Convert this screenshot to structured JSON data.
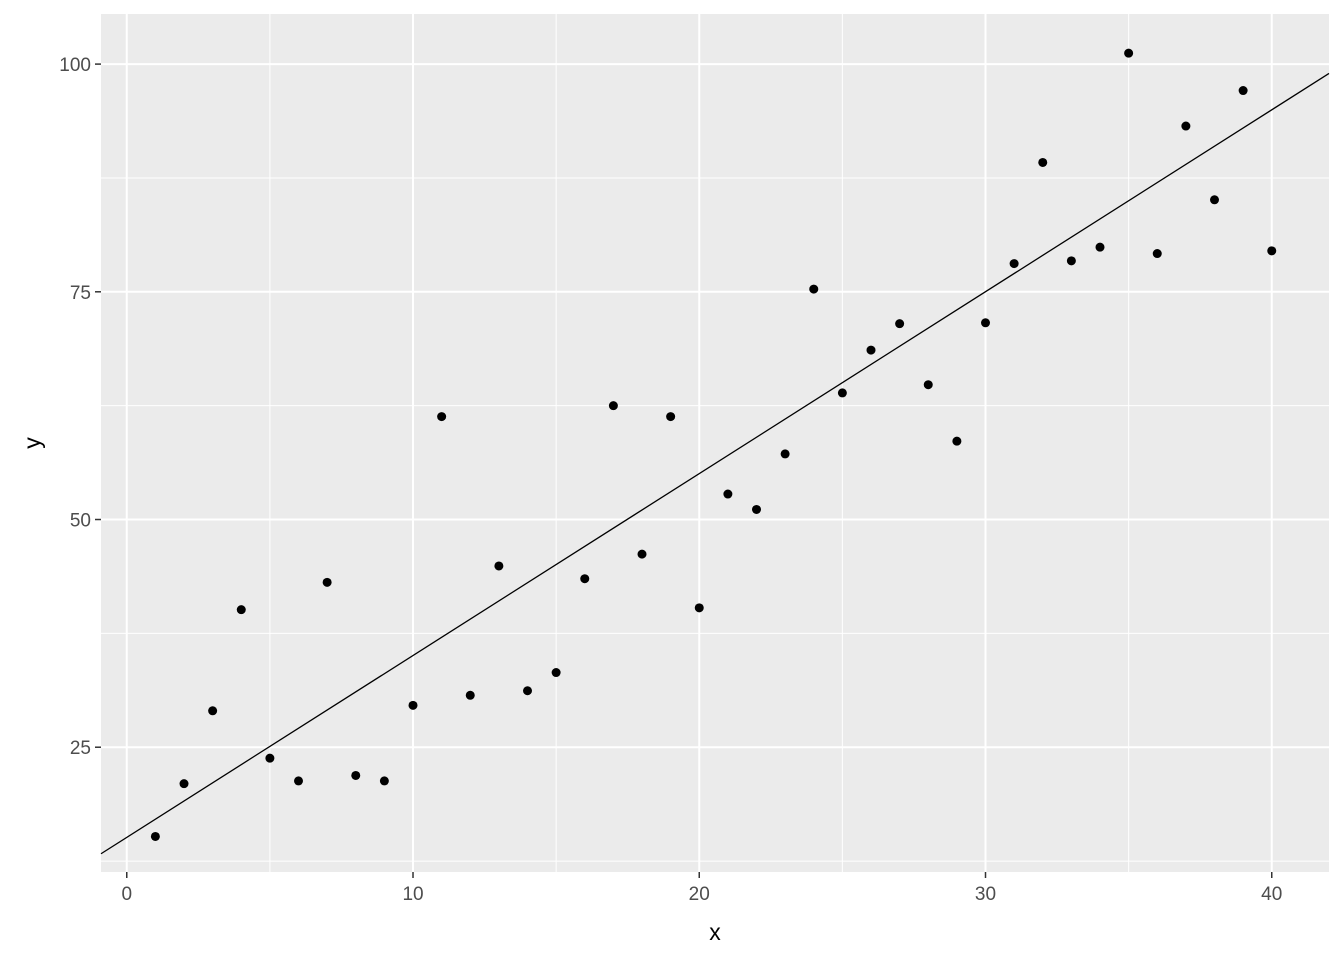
{
  "chart_data": {
    "type": "scatter",
    "title": "",
    "xlabel": "x",
    "ylabel": "y",
    "xlim": [
      -0.9,
      42
    ],
    "ylim": [
      11.3,
      105.5
    ],
    "x_ticks": [
      0,
      10,
      20,
      30,
      40
    ],
    "x_minor_ticks": [
      5,
      15,
      25,
      35
    ],
    "y_ticks": [
      25,
      50,
      75,
      100
    ],
    "y_minor_ticks": [
      12.5,
      37.5,
      62.5,
      87.5
    ],
    "x_tick_labels": [
      "0",
      "10",
      "20",
      "30",
      "40"
    ],
    "y_tick_labels": [
      "25",
      "50",
      "75",
      "100"
    ],
    "grid": true,
    "panel_background": "#ebebeb",
    "grid_color": "#ffffff",
    "point_color": "#000000",
    "points": [
      {
        "x": 1,
        "y": 15.2
      },
      {
        "x": 2,
        "y": 21.0
      },
      {
        "x": 3,
        "y": 29.0
      },
      {
        "x": 4,
        "y": 40.1
      },
      {
        "x": 5,
        "y": 23.8
      },
      {
        "x": 6,
        "y": 21.3
      },
      {
        "x": 7,
        "y": 43.1
      },
      {
        "x": 8,
        "y": 21.9
      },
      {
        "x": 9,
        "y": 21.3
      },
      {
        "x": 10,
        "y": 29.6
      },
      {
        "x": 11,
        "y": 61.3
      },
      {
        "x": 12,
        "y": 30.7
      },
      {
        "x": 13,
        "y": 44.9
      },
      {
        "x": 14,
        "y": 31.2
      },
      {
        "x": 15,
        "y": 33.2
      },
      {
        "x": 16,
        "y": 43.5
      },
      {
        "x": 17,
        "y": 62.5
      },
      {
        "x": 18,
        "y": 46.2
      },
      {
        "x": 19,
        "y": 61.3
      },
      {
        "x": 20,
        "y": 40.3
      },
      {
        "x": 21,
        "y": 52.8
      },
      {
        "x": 22,
        "y": 51.1
      },
      {
        "x": 23,
        "y": 57.2
      },
      {
        "x": 24,
        "y": 75.3
      },
      {
        "x": 25,
        "y": 63.9
      },
      {
        "x": 26,
        "y": 68.6
      },
      {
        "x": 27,
        "y": 71.5
      },
      {
        "x": 28,
        "y": 64.8
      },
      {
        "x": 29,
        "y": 58.6
      },
      {
        "x": 30,
        "y": 71.6
      },
      {
        "x": 31,
        "y": 78.1
      },
      {
        "x": 32,
        "y": 89.2
      },
      {
        "x": 33,
        "y": 78.4
      },
      {
        "x": 34,
        "y": 79.9
      },
      {
        "x": 35,
        "y": 101.2
      },
      {
        "x": 36,
        "y": 79.2
      },
      {
        "x": 37,
        "y": 93.2
      },
      {
        "x": 38,
        "y": 85.1
      },
      {
        "x": 39,
        "y": 97.1
      },
      {
        "x": 40,
        "y": 79.5
      }
    ],
    "fit_line": {
      "intercept": 15.1,
      "slope": 1.997,
      "color": "#000000"
    }
  }
}
